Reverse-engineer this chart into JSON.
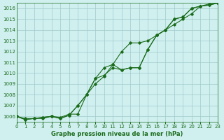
{
  "title": "Graphe pression niveau de la mer (hPa)",
  "bg_color": "#d0f0f0",
  "grid_color": "#a0c8c8",
  "line_color": "#1a6b1a",
  "marker_color": "#1a6b1a",
  "xlim": [
    0,
    23
  ],
  "ylim": [
    1005.5,
    1016.5
  ],
  "xticks": [
    0,
    1,
    2,
    3,
    4,
    5,
    6,
    7,
    8,
    9,
    10,
    11,
    12,
    13,
    14,
    15,
    16,
    17,
    18,
    19,
    20,
    21,
    22,
    23
  ],
  "yticks": [
    1006,
    1007,
    1008,
    1009,
    1010,
    1011,
    1012,
    1013,
    1014,
    1015,
    1016
  ],
  "series1_x": [
    0,
    1,
    2,
    3,
    4,
    5,
    6,
    7,
    8,
    9,
    10,
    11,
    12,
    13,
    14,
    15,
    16,
    17,
    18,
    19,
    20,
    21,
    22,
    23
  ],
  "series1_y": [
    1006.0,
    1005.7,
    1005.8,
    1005.9,
    1006.0,
    1005.8,
    1006.1,
    1007.0,
    1008.0,
    1009.5,
    1010.5,
    1010.8,
    1010.3,
    1010.5,
    1010.5,
    1012.2,
    1013.5,
    1014.0,
    1015.0,
    1015.2,
    1016.0,
    1016.2,
    1016.3,
    1016.5
  ],
  "series2_x": [
    0,
    1,
    2,
    3,
    4,
    5,
    6,
    7,
    8,
    9,
    10,
    11,
    12,
    13,
    14,
    15,
    16,
    17,
    18,
    19,
    20,
    21,
    22,
    23
  ],
  "series2_y": [
    1006.0,
    1005.7,
    1005.8,
    1005.8,
    1006.0,
    1005.8,
    1006.1,
    1007.0,
    1008.0,
    1009.5,
    1009.8,
    1010.5,
    1010.3,
    1010.5,
    1010.5,
    1012.2,
    1013.5,
    1014.0,
    1015.0,
    1015.2,
    1016.0,
    1016.2,
    1016.3,
    1016.5
  ],
  "series3_x": [
    0,
    1,
    2,
    3,
    4,
    5,
    6,
    7,
    8,
    9,
    10,
    11,
    12,
    13,
    14,
    15,
    16,
    17,
    18,
    19,
    20,
    21,
    22,
    23
  ],
  "series3_y": [
    1006.0,
    1005.8,
    1005.8,
    1005.9,
    1006.0,
    1005.9,
    1006.2,
    1006.2,
    1008.0,
    1009.0,
    1009.7,
    1010.8,
    1012.0,
    1012.8,
    1012.8,
    1013.0,
    1013.5,
    1014.0,
    1014.5,
    1015.0,
    1015.5,
    1016.2,
    1016.4,
    1016.5
  ]
}
